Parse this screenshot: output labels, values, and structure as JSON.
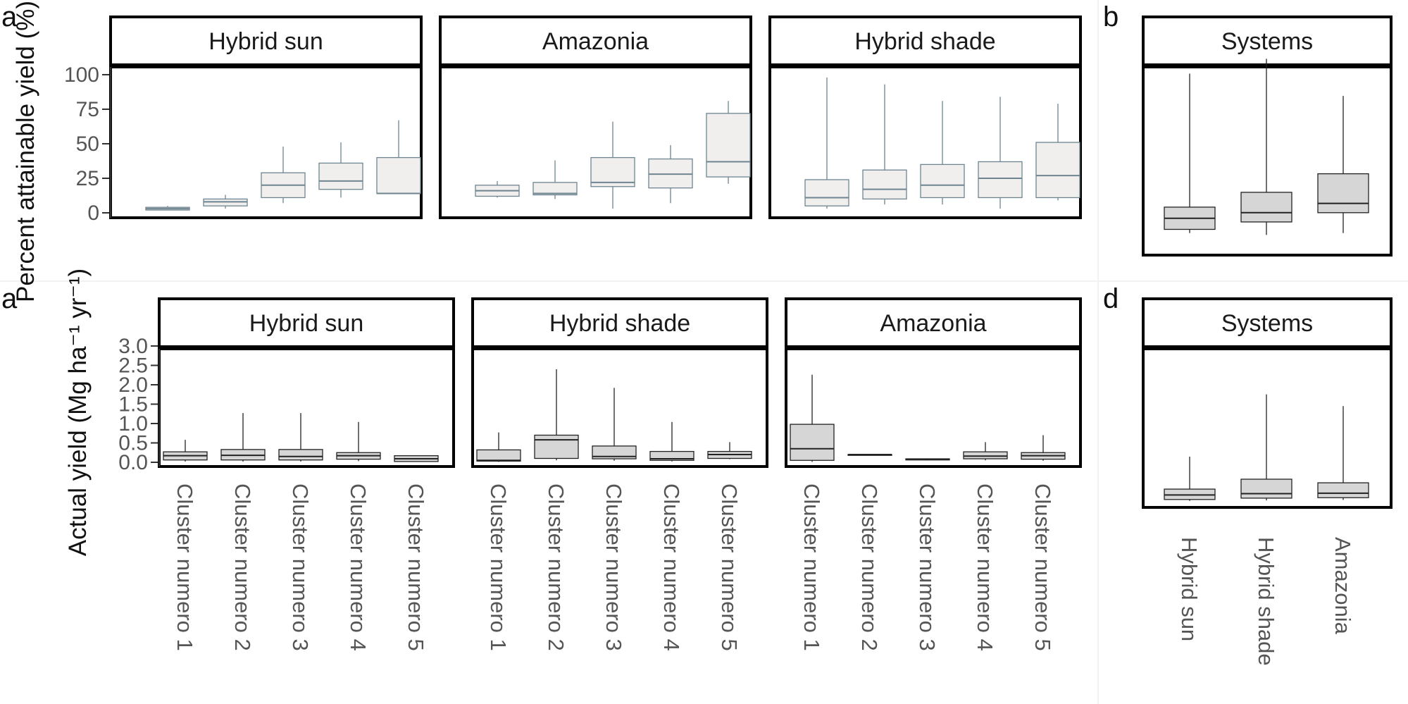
{
  "chart_data": [
    {
      "panel": "a",
      "type": "boxplot",
      "ylabel": "Percent attainable yield (%)",
      "ylim": [
        -5,
        120
      ],
      "yticks": [
        0,
        25,
        50,
        75,
        100
      ],
      "facets": [
        {
          "title": "Hybrid sun",
          "boxes": [
            {
              "min": 2,
              "q1": 2,
              "median": 3,
              "q3": 4,
              "max": 5
            },
            {
              "min": 3,
              "q1": 5,
              "median": 8,
              "q3": 10,
              "max": 13
            },
            {
              "min": 7,
              "q1": 11,
              "median": 20,
              "q3": 29,
              "max": 48
            },
            {
              "min": 11,
              "q1": 17,
              "median": 23,
              "q3": 36,
              "max": 51
            },
            {
              "min": 14,
              "q1": 14,
              "median": 14,
              "q3": 40,
              "max": 67
            }
          ]
        },
        {
          "title": "Amazonia",
          "boxes": [
            {
              "min": 11,
              "q1": 12,
              "median": 16,
              "q3": 20,
              "max": 23
            },
            {
              "min": 10,
              "q1": 13,
              "median": 14,
              "q3": 22,
              "max": 38
            },
            {
              "min": 3,
              "q1": 19,
              "median": 22,
              "q3": 40,
              "max": 66
            },
            {
              "min": 7,
              "q1": 18,
              "median": 28,
              "q3": 39,
              "max": 49
            },
            {
              "min": 21,
              "q1": 26,
              "median": 37,
              "q3": 72,
              "max": 81
            }
          ]
        },
        {
          "title": "Hybrid shade",
          "boxes": [
            {
              "min": 3,
              "q1": 5,
              "median": 11,
              "q3": 24,
              "max": 98
            },
            {
              "min": 6,
              "q1": 10,
              "median": 17,
              "q3": 31,
              "max": 93
            },
            {
              "min": 6,
              "q1": 11,
              "median": 20,
              "q3": 35,
              "max": 81
            },
            {
              "min": 3,
              "q1": 11,
              "median": 25,
              "q3": 37,
              "max": 84
            },
            {
              "min": 9,
              "q1": 11,
              "median": 27,
              "q3": 51,
              "max": 79
            }
          ]
        }
      ]
    },
    {
      "panel": "b",
      "type": "boxplot",
      "ylim": [
        -5,
        120
      ],
      "facets": [
        {
          "title": "Systems",
          "boxes": [
            {
              "min": 2,
              "q1": 4,
              "median": 10,
              "q3": 16,
              "max": 88
            },
            {
              "min": 1,
              "q1": 8,
              "median": 13,
              "q3": 24,
              "max": 96
            },
            {
              "min": 2,
              "q1": 13,
              "median": 18,
              "q3": 34,
              "max": 76
            }
          ]
        }
      ]
    },
    {
      "panel": "a",
      "type": "boxplot",
      "ylabel": "Actual yield (Mg  ha⁻¹  yr⁻¹)",
      "ylim": [
        -0.1,
        3.1
      ],
      "yticks": [
        "0.0",
        "0.5",
        "1.0",
        "1.5",
        "2.0",
        "2.5",
        "3.0"
      ],
      "categories": [
        "Cluster numero 1",
        "Cluster numero 2",
        "Cluster numero 3",
        "Cluster numero 4",
        "Cluster numero 5"
      ],
      "facets": [
        {
          "title": "Hybrid sun",
          "boxes": [
            {
              "min": 0.02,
              "q1": 0.06,
              "median": 0.17,
              "q3": 0.27,
              "max": 0.58
            },
            {
              "min": 0.02,
              "q1": 0.06,
              "median": 0.18,
              "q3": 0.33,
              "max": 1.27
            },
            {
              "min": 0.02,
              "q1": 0.06,
              "median": 0.15,
              "q3": 0.33,
              "max": 1.27
            },
            {
              "min": 0.03,
              "q1": 0.08,
              "median": 0.17,
              "q3": 0.25,
              "max": 1.04
            },
            {
              "min": 0.01,
              "q1": 0.02,
              "median": 0.09,
              "q3": 0.17,
              "max": 0.17
            }
          ]
        },
        {
          "title": "Hybrid shade",
          "boxes": [
            {
              "min": 0.01,
              "q1": 0.03,
              "median": 0.05,
              "q3": 0.32,
              "max": 0.77
            },
            {
              "min": 0.05,
              "q1": 0.1,
              "median": 0.58,
              "q3": 0.7,
              "max": 2.4
            },
            {
              "min": 0.04,
              "q1": 0.09,
              "median": 0.15,
              "q3": 0.42,
              "max": 1.92
            },
            {
              "min": 0.02,
              "q1": 0.05,
              "median": 0.09,
              "q3": 0.28,
              "max": 1.04
            },
            {
              "min": 0.08,
              "q1": 0.1,
              "median": 0.2,
              "q3": 0.28,
              "max": 0.52
            }
          ]
        },
        {
          "title": "Amazonia",
          "boxes": [
            {
              "min": 0.01,
              "q1": 0.05,
              "median": 0.35,
              "q3": 0.98,
              "max": 2.26
            },
            {
              "min": 0.2,
              "q1": 0.2,
              "median": 0.2,
              "q3": 0.2,
              "max": 0.2
            },
            {
              "min": 0.05,
              "q1": 0.06,
              "median": 0.08,
              "q3": 0.09,
              "max": 0.1
            },
            {
              "min": 0.05,
              "q1": 0.09,
              "median": 0.16,
              "q3": 0.27,
              "max": 0.52
            },
            {
              "min": 0.04,
              "q1": 0.08,
              "median": 0.17,
              "q3": 0.25,
              "max": 0.7
            }
          ]
        }
      ]
    },
    {
      "panel": "d",
      "type": "boxplot",
      "categories": [
        "Hybrid sun",
        "Hybrid shade",
        "Amazonia"
      ],
      "facets": [
        {
          "title": "Systems",
          "boxes": [
            {
              "min": 0.02,
              "q1": 0.05,
              "median": 0.15,
              "q3": 0.28,
              "max": 1.0
            },
            {
              "min": 0.03,
              "q1": 0.08,
              "median": 0.18,
              "q3": 0.5,
              "max": 2.38
            },
            {
              "min": 0.04,
              "q1": 0.09,
              "median": 0.19,
              "q3": 0.42,
              "max": 2.12
            }
          ]
        }
      ]
    }
  ]
}
